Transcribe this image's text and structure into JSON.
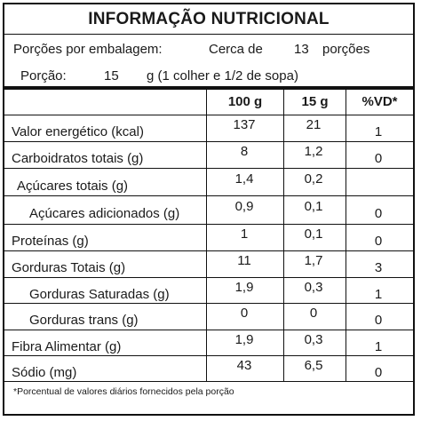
{
  "title": "INFORMAÇÃO NUTRICIONAL",
  "servings": {
    "per_package_label": "Porções por embalagem:",
    "approx_label": "Cerca de",
    "count": "13",
    "unit": "porções"
  },
  "portion": {
    "label": "Porção:",
    "amount": "15",
    "description": "g (1 colher e 1/2 de sopa)"
  },
  "columns": [
    "100 g",
    "15 g",
    "%VD*"
  ],
  "rows": [
    {
      "name": "Valor energético (kcal)",
      "v100": "137",
      "v15": "21",
      "vd": "1"
    },
    {
      "name": "Carboidratos totais (g)",
      "v100": "8",
      "v15": "1,2",
      "vd": "0"
    },
    {
      "name": "Açúcares totais (g)",
      "v100": "1,4",
      "v15": "0,2",
      "vd": ""
    },
    {
      "name": "Açúcares adicionados (g)",
      "v100": "0,9",
      "v15": "0,1",
      "vd": "0"
    },
    {
      "name": "Proteínas (g)",
      "v100": "1",
      "v15": "0,1",
      "vd": "0"
    },
    {
      "name": "Gorduras Totais (g)",
      "v100": "11",
      "v15": "1,7",
      "vd": "3"
    },
    {
      "name": "Gorduras Saturadas (g)",
      "v100": "1,9",
      "v15": "0,3",
      "vd": "1"
    },
    {
      "name": "Gorduras trans (g)",
      "v100": "0",
      "v15": "0",
      "vd": "0"
    },
    {
      "name": "Fibra Alimentar (g)",
      "v100": "1,9",
      "v15": "0,3",
      "vd": "1"
    },
    {
      "name": "Sódio (mg)",
      "v100": "43",
      "v15": "6,5",
      "vd": "0"
    }
  ],
  "footnote": "*Porcentual de valores diários fornecidos pela porção"
}
